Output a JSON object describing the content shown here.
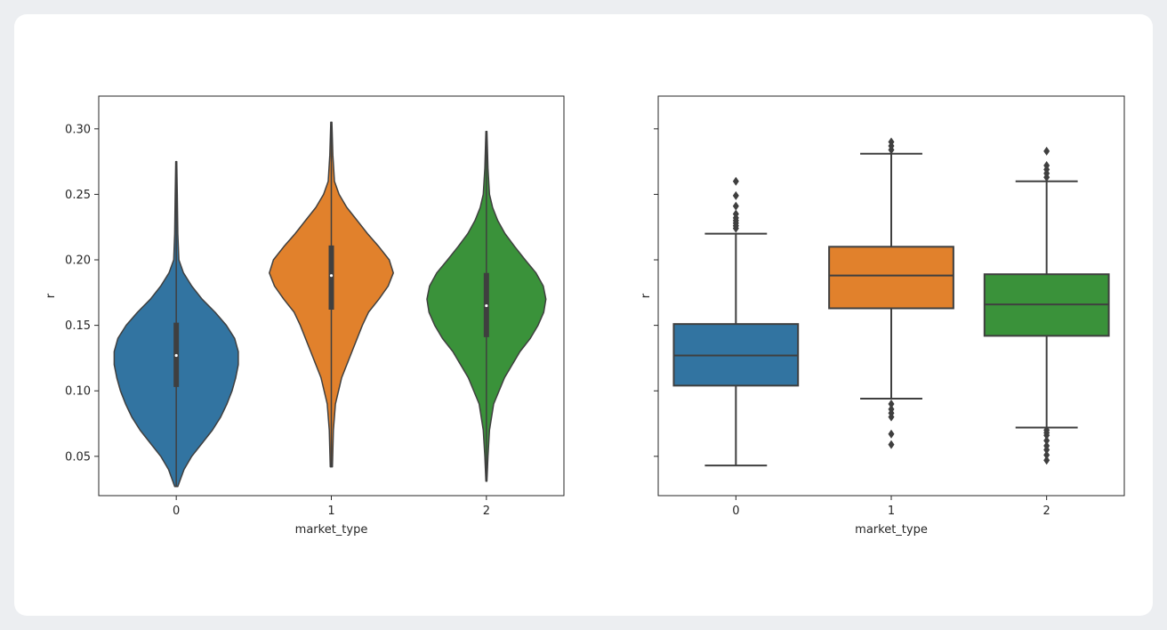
{
  "chart_data": [
    {
      "type": "violin",
      "xlabel": "market_type",
      "ylabel": "r",
      "categories": [
        "0",
        "1",
        "2"
      ],
      "ylim": [
        0.02,
        0.325
      ],
      "yticks": [
        0.05,
        0.1,
        0.15,
        0.2,
        0.25,
        0.3
      ],
      "ytick_labels": [
        "0.05",
        "0.10",
        "0.15",
        "0.20",
        "0.25",
        "0.30"
      ],
      "colors": [
        "#3274a1",
        "#e1812c",
        "#3a923a"
      ],
      "grid": false,
      "series": [
        {
          "category": "0",
          "min": 0.027,
          "max": 0.275,
          "q1": 0.103,
          "median": 0.127,
          "q3": 0.152,
          "density": [
            [
              0.027,
              0.003
            ],
            [
              0.04,
              0.015
            ],
            [
              0.05,
              0.03
            ],
            [
              0.06,
              0.05
            ],
            [
              0.07,
              0.07
            ],
            [
              0.08,
              0.086
            ],
            [
              0.09,
              0.098
            ],
            [
              0.1,
              0.108
            ],
            [
              0.11,
              0.115
            ],
            [
              0.12,
              0.12
            ],
            [
              0.13,
              0.12
            ],
            [
              0.14,
              0.113
            ],
            [
              0.15,
              0.097
            ],
            [
              0.16,
              0.075
            ],
            [
              0.17,
              0.05
            ],
            [
              0.18,
              0.03
            ],
            [
              0.19,
              0.014
            ],
            [
              0.2,
              0.005
            ],
            [
              0.22,
              0.003
            ],
            [
              0.25,
              0.002
            ],
            [
              0.275,
              0.001
            ]
          ]
        },
        {
          "category": "1",
          "min": 0.042,
          "max": 0.305,
          "q1": 0.162,
          "median": 0.188,
          "q3": 0.211,
          "density": [
            [
              0.042,
              0.002
            ],
            [
              0.07,
              0.004
            ],
            [
              0.09,
              0.008
            ],
            [
              0.11,
              0.02
            ],
            [
              0.13,
              0.04
            ],
            [
              0.15,
              0.06
            ],
            [
              0.16,
              0.072
            ],
            [
              0.17,
              0.092
            ],
            [
              0.18,
              0.11
            ],
            [
              0.19,
              0.12
            ],
            [
              0.2,
              0.112
            ],
            [
              0.21,
              0.092
            ],
            [
              0.22,
              0.07
            ],
            [
              0.23,
              0.05
            ],
            [
              0.24,
              0.03
            ],
            [
              0.25,
              0.015
            ],
            [
              0.26,
              0.006
            ],
            [
              0.28,
              0.003
            ],
            [
              0.305,
              0.001
            ]
          ]
        },
        {
          "category": "2",
          "min": 0.031,
          "max": 0.298,
          "q1": 0.141,
          "median": 0.165,
          "q3": 0.19,
          "density": [
            [
              0.031,
              0.001
            ],
            [
              0.05,
              0.003
            ],
            [
              0.07,
              0.006
            ],
            [
              0.09,
              0.014
            ],
            [
              0.11,
              0.035
            ],
            [
              0.13,
              0.065
            ],
            [
              0.14,
              0.085
            ],
            [
              0.15,
              0.1
            ],
            [
              0.16,
              0.111
            ],
            [
              0.17,
              0.115
            ],
            [
              0.18,
              0.11
            ],
            [
              0.19,
              0.096
            ],
            [
              0.2,
              0.075
            ],
            [
              0.21,
              0.055
            ],
            [
              0.22,
              0.036
            ],
            [
              0.23,
              0.022
            ],
            [
              0.24,
              0.012
            ],
            [
              0.25,
              0.006
            ],
            [
              0.27,
              0.003
            ],
            [
              0.298,
              0.001
            ]
          ]
        }
      ]
    },
    {
      "type": "box",
      "xlabel": "market_type",
      "ylabel": "r",
      "categories": [
        "0",
        "1",
        "2"
      ],
      "ylim": [
        0.02,
        0.325
      ],
      "yticks": [
        0.05,
        0.1,
        0.15,
        0.2,
        0.25,
        0.3
      ],
      "colors": [
        "#3274a1",
        "#e1812c",
        "#3a923a"
      ],
      "grid": false,
      "series": [
        {
          "category": "0",
          "whisker_low": 0.043,
          "q1": 0.104,
          "median": 0.127,
          "q3": 0.151,
          "whisker_high": 0.22,
          "outliers": [
            0.224,
            0.226,
            0.228,
            0.23,
            0.232,
            0.235,
            0.241,
            0.249,
            0.26
          ]
        },
        {
          "category": "1",
          "whisker_low": 0.094,
          "q1": 0.163,
          "median": 0.188,
          "q3": 0.21,
          "whisker_high": 0.281,
          "outliers": [
            0.059,
            0.067,
            0.08,
            0.083,
            0.086,
            0.09,
            0.284,
            0.287,
            0.29
          ]
        },
        {
          "category": "2",
          "whisker_low": 0.072,
          "q1": 0.142,
          "median": 0.166,
          "q3": 0.189,
          "whisker_high": 0.26,
          "outliers": [
            0.047,
            0.051,
            0.055,
            0.058,
            0.062,
            0.066,
            0.068,
            0.07,
            0.263,
            0.266,
            0.269,
            0.272,
            0.283
          ]
        }
      ]
    }
  ]
}
